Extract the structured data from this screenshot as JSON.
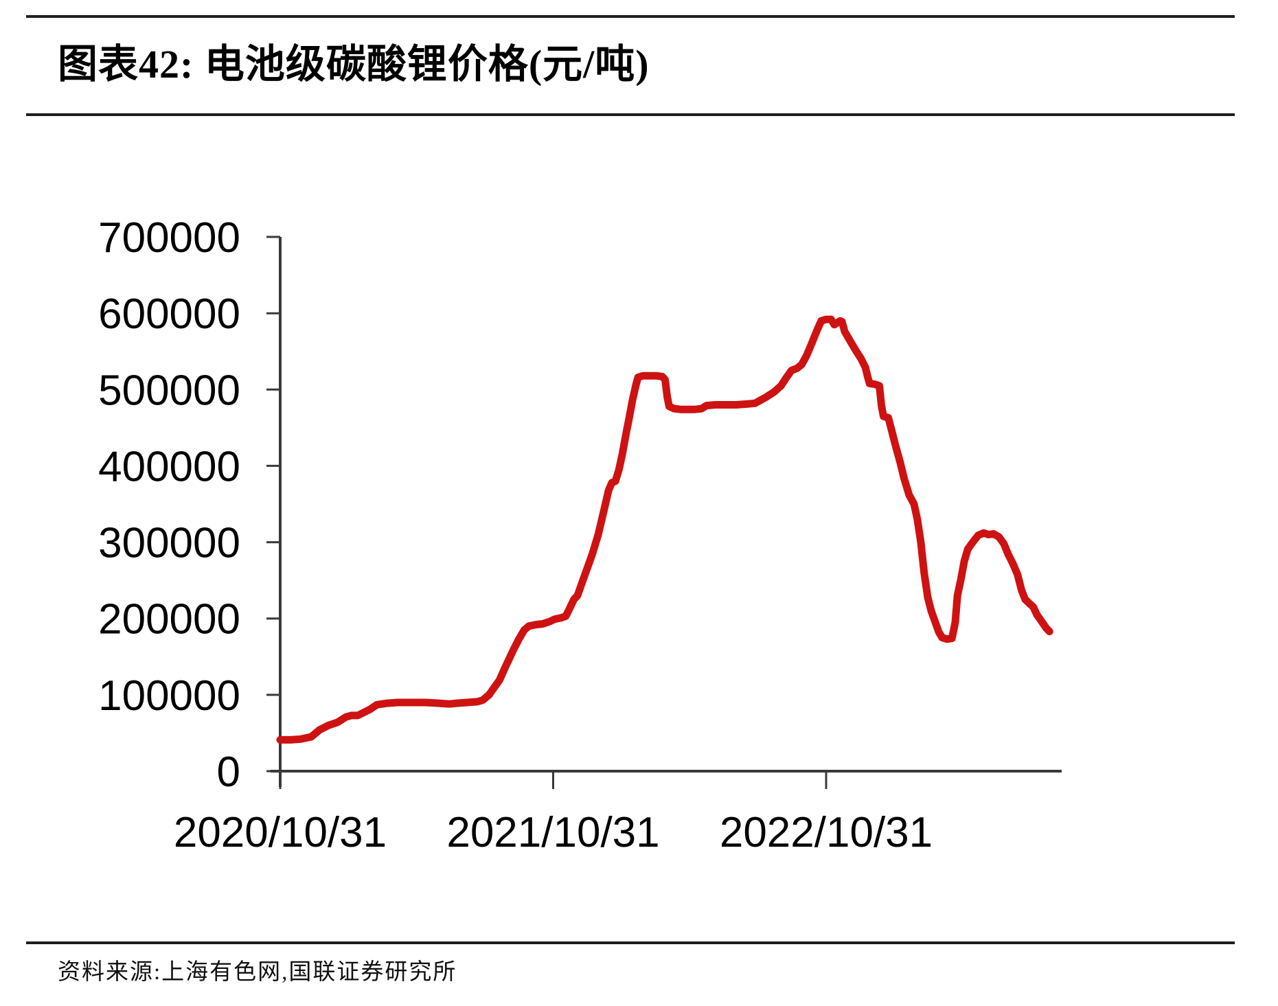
{
  "header": {
    "title": "图表42: 电池级碳酸锂价格(元/吨)"
  },
  "footer": {
    "source": "资料来源:上海有色网,国联证券研究所"
  },
  "chart_data": {
    "type": "line",
    "title": "电池级碳酸锂价格",
    "unit": "元/吨",
    "grid": false,
    "legend": "none",
    "axis_color": "#3a3a3a",
    "label_color": "#000000",
    "ylim": [
      0,
      700000
    ],
    "y_ticks": [
      700000,
      600000,
      500000,
      400000,
      300000,
      200000,
      100000,
      0
    ],
    "x_tick_labels": [
      "2020/10/31",
      "2021/10/31",
      "2022/10/31"
    ],
    "x_tick_positions": [
      0,
      1,
      2
    ],
    "x_range_years": [
      0,
      2.87
    ],
    "x_unit": "years since 2020/10/31",
    "series": [
      {
        "name": "电池级碳酸锂价格(元/吨)",
        "color": "#ce1212",
        "points": [
          [
            0.0,
            41000
          ],
          [
            0.038,
            41000
          ],
          [
            0.076,
            42000
          ],
          [
            0.114,
            45000
          ],
          [
            0.144,
            54000
          ],
          [
            0.177,
            60000
          ],
          [
            0.21,
            64000
          ],
          [
            0.241,
            71000
          ],
          [
            0.261,
            73000
          ],
          [
            0.284,
            73000
          ],
          [
            0.296,
            75000
          ],
          [
            0.329,
            81000
          ],
          [
            0.354,
            87000
          ],
          [
            0.392,
            89000
          ],
          [
            0.43,
            90000
          ],
          [
            0.481,
            90000
          ],
          [
            0.532,
            90000
          ],
          [
            0.582,
            89000
          ],
          [
            0.62,
            88000
          ],
          [
            0.646,
            89000
          ],
          [
            0.684,
            90000
          ],
          [
            0.722,
            91000
          ],
          [
            0.742,
            93000
          ],
          [
            0.765,
            100000
          ],
          [
            0.785,
            110000
          ],
          [
            0.803,
            119000
          ],
          [
            0.823,
            135000
          ],
          [
            0.853,
            158000
          ],
          [
            0.873,
            172000
          ],
          [
            0.894,
            185000
          ],
          [
            0.911,
            190000
          ],
          [
            0.937,
            192000
          ],
          [
            0.962,
            193000
          ],
          [
            0.987,
            196000
          ],
          [
            1.005,
            199000
          ],
          [
            1.03,
            201000
          ],
          [
            1.046,
            203000
          ],
          [
            1.056,
            210000
          ],
          [
            1.076,
            225000
          ],
          [
            1.089,
            230000
          ],
          [
            1.109,
            250000
          ],
          [
            1.127,
            268000
          ],
          [
            1.144,
            285000
          ],
          [
            1.165,
            310000
          ],
          [
            1.185,
            340000
          ],
          [
            1.203,
            368000
          ],
          [
            1.215,
            378000
          ],
          [
            1.228,
            380000
          ],
          [
            1.241,
            395000
          ],
          [
            1.253,
            415000
          ],
          [
            1.266,
            440000
          ],
          [
            1.278,
            462000
          ],
          [
            1.291,
            487000
          ],
          [
            1.304,
            507000
          ],
          [
            1.311,
            516000
          ],
          [
            1.329,
            518000
          ],
          [
            1.354,
            518000
          ],
          [
            1.38,
            518000
          ],
          [
            1.4,
            517000
          ],
          [
            1.41,
            513000
          ],
          [
            1.418,
            490000
          ],
          [
            1.425,
            478000
          ],
          [
            1.443,
            475000
          ],
          [
            1.468,
            474000
          ],
          [
            1.494,
            474000
          ],
          [
            1.519,
            474000
          ],
          [
            1.544,
            475000
          ],
          [
            1.562,
            479000
          ],
          [
            1.595,
            480000
          ],
          [
            1.633,
            480000
          ],
          [
            1.671,
            480000
          ],
          [
            1.709,
            481000
          ],
          [
            1.739,
            482000
          ],
          [
            1.759,
            486000
          ],
          [
            1.78,
            490000
          ],
          [
            1.81,
            497000
          ],
          [
            1.835,
            505000
          ],
          [
            1.853,
            515000
          ],
          [
            1.873,
            525000
          ],
          [
            1.894,
            528000
          ],
          [
            1.911,
            533000
          ],
          [
            1.929,
            545000
          ],
          [
            1.949,
            562000
          ],
          [
            1.967,
            578000
          ],
          [
            1.982,
            590000
          ],
          [
            2.0,
            592000
          ],
          [
            2.018,
            592000
          ],
          [
            2.03,
            585000
          ],
          [
            2.051,
            590000
          ],
          [
            2.058,
            589000
          ],
          [
            2.068,
            576000
          ],
          [
            2.089,
            563000
          ],
          [
            2.109,
            551000
          ],
          [
            2.127,
            541000
          ],
          [
            2.144,
            529000
          ],
          [
            2.152,
            517000
          ],
          [
            2.159,
            508000
          ],
          [
            2.177,
            507000
          ],
          [
            2.195,
            505000
          ],
          [
            2.203,
            478000
          ],
          [
            2.21,
            465000
          ],
          [
            2.228,
            463000
          ],
          [
            2.241,
            445000
          ],
          [
            2.253,
            428000
          ],
          [
            2.271,
            405000
          ],
          [
            2.286,
            383000
          ],
          [
            2.304,
            362000
          ],
          [
            2.322,
            350000
          ],
          [
            2.334,
            330000
          ],
          [
            2.347,
            300000
          ],
          [
            2.359,
            260000
          ],
          [
            2.372,
            228000
          ],
          [
            2.385,
            210000
          ],
          [
            2.4,
            195000
          ],
          [
            2.413,
            182000
          ],
          [
            2.425,
            175000
          ],
          [
            2.443,
            173000
          ],
          [
            2.461,
            174000
          ],
          [
            2.473,
            195000
          ],
          [
            2.481,
            230000
          ],
          [
            2.494,
            252000
          ],
          [
            2.506,
            275000
          ],
          [
            2.519,
            291000
          ],
          [
            2.537,
            300000
          ],
          [
            2.557,
            309000
          ],
          [
            2.577,
            312000
          ],
          [
            2.595,
            310000
          ],
          [
            2.613,
            311000
          ],
          [
            2.633,
            307000
          ],
          [
            2.651,
            298000
          ],
          [
            2.666,
            285000
          ],
          [
            2.684,
            272000
          ],
          [
            2.701,
            258000
          ],
          [
            2.716,
            237000
          ],
          [
            2.729,
            225000
          ],
          [
            2.747,
            219000
          ],
          [
            2.759,
            215000
          ],
          [
            2.772,
            205000
          ],
          [
            2.79,
            196000
          ],
          [
            2.805,
            188000
          ],
          [
            2.818,
            183000
          ]
        ]
      }
    ]
  }
}
